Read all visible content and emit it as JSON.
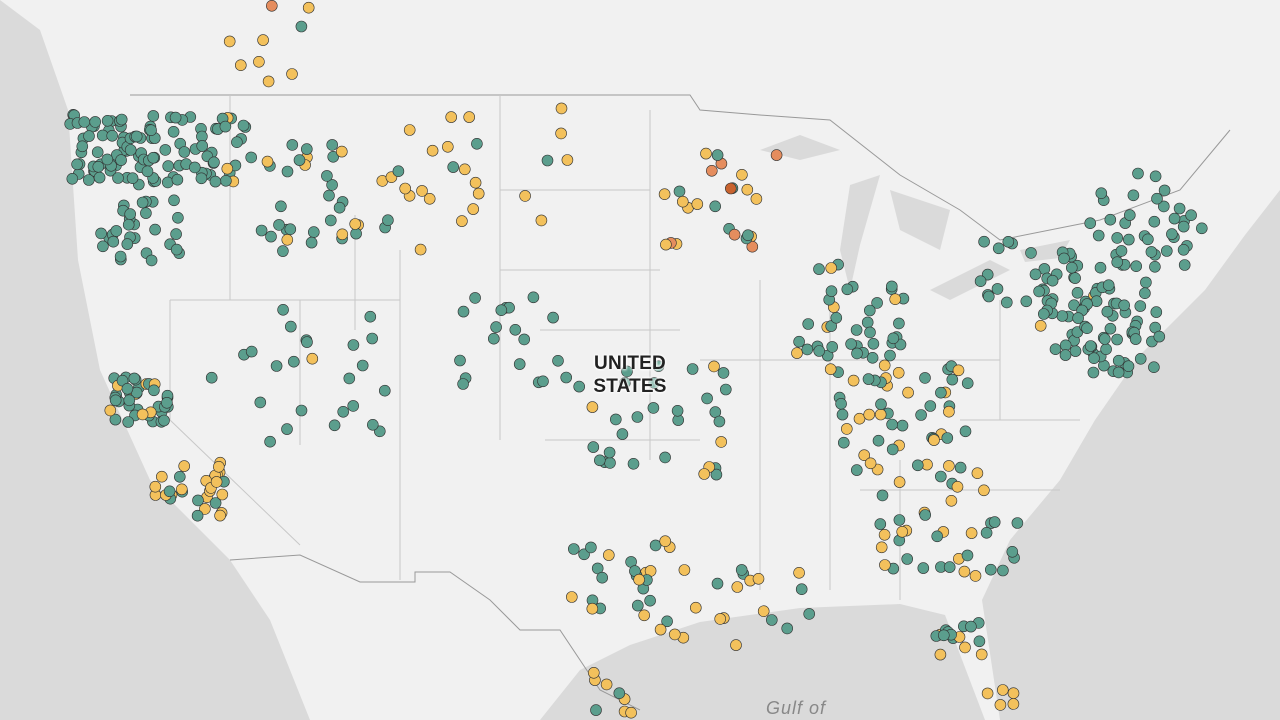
{
  "map": {
    "labels": {
      "country": "UNITED STATES",
      "gulf": "Gulf of"
    }
  }
}
